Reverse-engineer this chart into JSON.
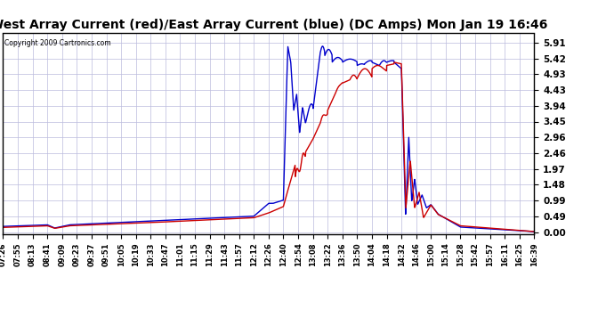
{
  "title": "West Array Current (red)/East Array Current (blue) (DC Amps) Mon Jan 19 16:46",
  "copyright": "Copyright 2009 Cartronics.com",
  "yticks": [
    0.0,
    0.49,
    0.99,
    1.48,
    1.97,
    2.46,
    2.96,
    3.45,
    3.94,
    4.43,
    4.93,
    5.42,
    5.91
  ],
  "ylim": [
    -0.05,
    6.2
  ],
  "bg_color": "#FFFFFF",
  "grid_color": "#BBBBDD",
  "title_font_size": 10,
  "xtick_labels": [
    "07:26",
    "07:55",
    "08:13",
    "08:41",
    "09:09",
    "09:23",
    "09:37",
    "09:51",
    "10:05",
    "10:19",
    "10:33",
    "10:47",
    "11:01",
    "11:15",
    "11:29",
    "11:43",
    "11:57",
    "12:12",
    "12:26",
    "12:40",
    "12:54",
    "13:08",
    "13:22",
    "13:36",
    "13:50",
    "14:04",
    "14:18",
    "14:32",
    "14:46",
    "15:00",
    "15:14",
    "15:28",
    "15:42",
    "15:57",
    "16:11",
    "16:25",
    "16:39"
  ],
  "red_line_color": "#CC0000",
  "blue_line_color": "#0000CC",
  "line_width": 1.0
}
